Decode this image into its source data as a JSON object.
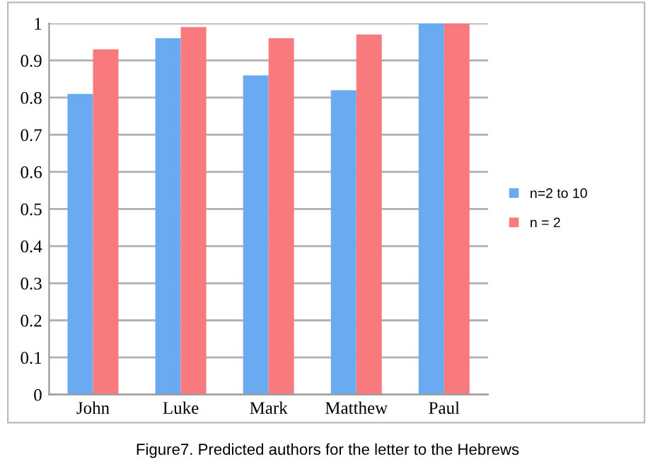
{
  "chart_data": {
    "type": "bar",
    "categories": [
      "John",
      "Luke",
      "Mark",
      "Matthew",
      "Paul"
    ],
    "series": [
      {
        "name": "n=2 to 10",
        "color": "#6aaaf0",
        "values": [
          0.81,
          0.96,
          0.86,
          0.82,
          1.0
        ]
      },
      {
        "name": "n = 2",
        "color": "#f87a7c",
        "values": [
          0.93,
          0.99,
          0.96,
          0.97,
          1.0
        ]
      }
    ],
    "ylim": [
      0,
      1
    ],
    "yticks": [
      0,
      0.1,
      0.2,
      0.3,
      0.4,
      0.5,
      0.6,
      0.7,
      0.8,
      0.9,
      1
    ],
    "grid": "y",
    "legend": "right",
    "annotations": [
      "Figure7. Predicted authors for the letter to the Hebrews"
    ]
  }
}
